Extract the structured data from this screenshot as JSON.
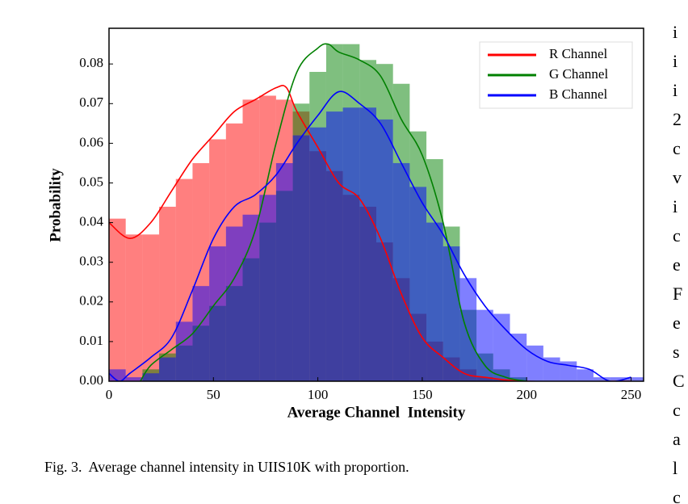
{
  "chart_data": {
    "type": "histogram",
    "xlabel": "Average Channel  Intensity",
    "ylabel": "Probability",
    "bins": [
      0,
      8,
      16,
      24,
      32,
      40,
      48,
      56,
      64,
      72,
      80,
      88,
      96,
      104,
      112,
      120,
      128,
      136,
      144,
      152,
      160,
      168,
      176,
      184,
      192,
      200,
      208,
      216,
      224,
      232,
      240,
      248,
      256
    ],
    "series": [
      {
        "name": "R Channel",
        "color": "#ff0000",
        "values": [
          0.041,
          0.037,
          0.037,
          0.044,
          0.051,
          0.055,
          0.061,
          0.065,
          0.071,
          0.072,
          0.071,
          0.068,
          0.058,
          0.053,
          0.047,
          0.044,
          0.035,
          0.026,
          0.017,
          0.01,
          0.006,
          0.003,
          0.001,
          0.0005,
          0.0002,
          0,
          0,
          0,
          0,
          0,
          0,
          0
        ],
        "kde_x": [
          0,
          10,
          20,
          30,
          40,
          50,
          60,
          70,
          80,
          85,
          90,
          100,
          110,
          120,
          130,
          140,
          150,
          160,
          170,
          180,
          200,
          250
        ],
        "kde_values": [
          0.04,
          0.036,
          0.04,
          0.048,
          0.056,
          0.062,
          0.068,
          0.071,
          0.074,
          0.074,
          0.068,
          0.059,
          0.05,
          0.046,
          0.036,
          0.022,
          0.011,
          0.006,
          0.002,
          0.001,
          0,
          0
        ]
      },
      {
        "name": "G Channel",
        "color": "#008000",
        "values": [
          0,
          0,
          0.003,
          0.007,
          0.009,
          0.014,
          0.019,
          0.024,
          0.031,
          0.04,
          0.048,
          0.07,
          0.078,
          0.085,
          0.085,
          0.081,
          0.08,
          0.075,
          0.063,
          0.056,
          0.039,
          0.018,
          0.007,
          0.003,
          0.001,
          0,
          0,
          0,
          0,
          0,
          0,
          0
        ],
        "kde_x": [
          15,
          20,
          30,
          40,
          50,
          60,
          70,
          80,
          90,
          100,
          105,
          110,
          120,
          130,
          140,
          150,
          160,
          170,
          180,
          190,
          200
        ],
        "kde_values": [
          0,
          0.004,
          0.008,
          0.012,
          0.019,
          0.026,
          0.038,
          0.06,
          0.078,
          0.084,
          0.085,
          0.083,
          0.081,
          0.077,
          0.066,
          0.057,
          0.04,
          0.015,
          0.004,
          0.001,
          0
        ]
      },
      {
        "name": "B Channel",
        "color": "#0000ff",
        "values": [
          0.003,
          0.001,
          0.002,
          0.006,
          0.015,
          0.024,
          0.034,
          0.039,
          0.042,
          0.047,
          0.055,
          0.062,
          0.064,
          0.068,
          0.069,
          0.069,
          0.066,
          0.055,
          0.049,
          0.04,
          0.034,
          0.026,
          0.018,
          0.017,
          0.012,
          0.009,
          0.006,
          0.005,
          0.003,
          0.001,
          0.001,
          0.001
        ],
        "kde_x": [
          0,
          5,
          10,
          20,
          30,
          40,
          50,
          60,
          70,
          80,
          90,
          100,
          110,
          120,
          130,
          140,
          150,
          160,
          170,
          180,
          190,
          200,
          210,
          220,
          230,
          240,
          250
        ],
        "kde_values": [
          0.002,
          0,
          0.002,
          0.006,
          0.011,
          0.023,
          0.036,
          0.044,
          0.047,
          0.052,
          0.06,
          0.067,
          0.073,
          0.07,
          0.065,
          0.055,
          0.045,
          0.037,
          0.027,
          0.019,
          0.013,
          0.008,
          0.005,
          0.004,
          0.003,
          0,
          0.001
        ]
      }
    ],
    "xlim": [
      0,
      256
    ],
    "ylim": [
      0,
      0.089
    ],
    "xticks": [
      0,
      50,
      100,
      150,
      200,
      250
    ],
    "yticks": [
      {
        "value": 0,
        "label": "0.00"
      },
      {
        "value": 0.01,
        "label": "0.01"
      },
      {
        "value": 0.02,
        "label": "0.02"
      },
      {
        "value": 0.03,
        "label": "0.03"
      },
      {
        "value": 0.04,
        "label": "0.04"
      },
      {
        "value": 0.05,
        "label": "0.05"
      },
      {
        "value": 0.06,
        "label": "0.06"
      },
      {
        "value": 0.07,
        "label": "0.07"
      },
      {
        "value": 0.08,
        "label": "0.08"
      }
    ],
    "legend": "upper right"
  },
  "caption": "Fig. 3.  Average channel intensity in UIIS10K with proportion.",
  "side_text": [
    "i",
    "i",
    "i",
    "2",
    "c",
    "v",
    "i",
    "c",
    "e",
    "F",
    "e",
    "s",
    "C",
    "c",
    "a",
    "l",
    "c"
  ]
}
